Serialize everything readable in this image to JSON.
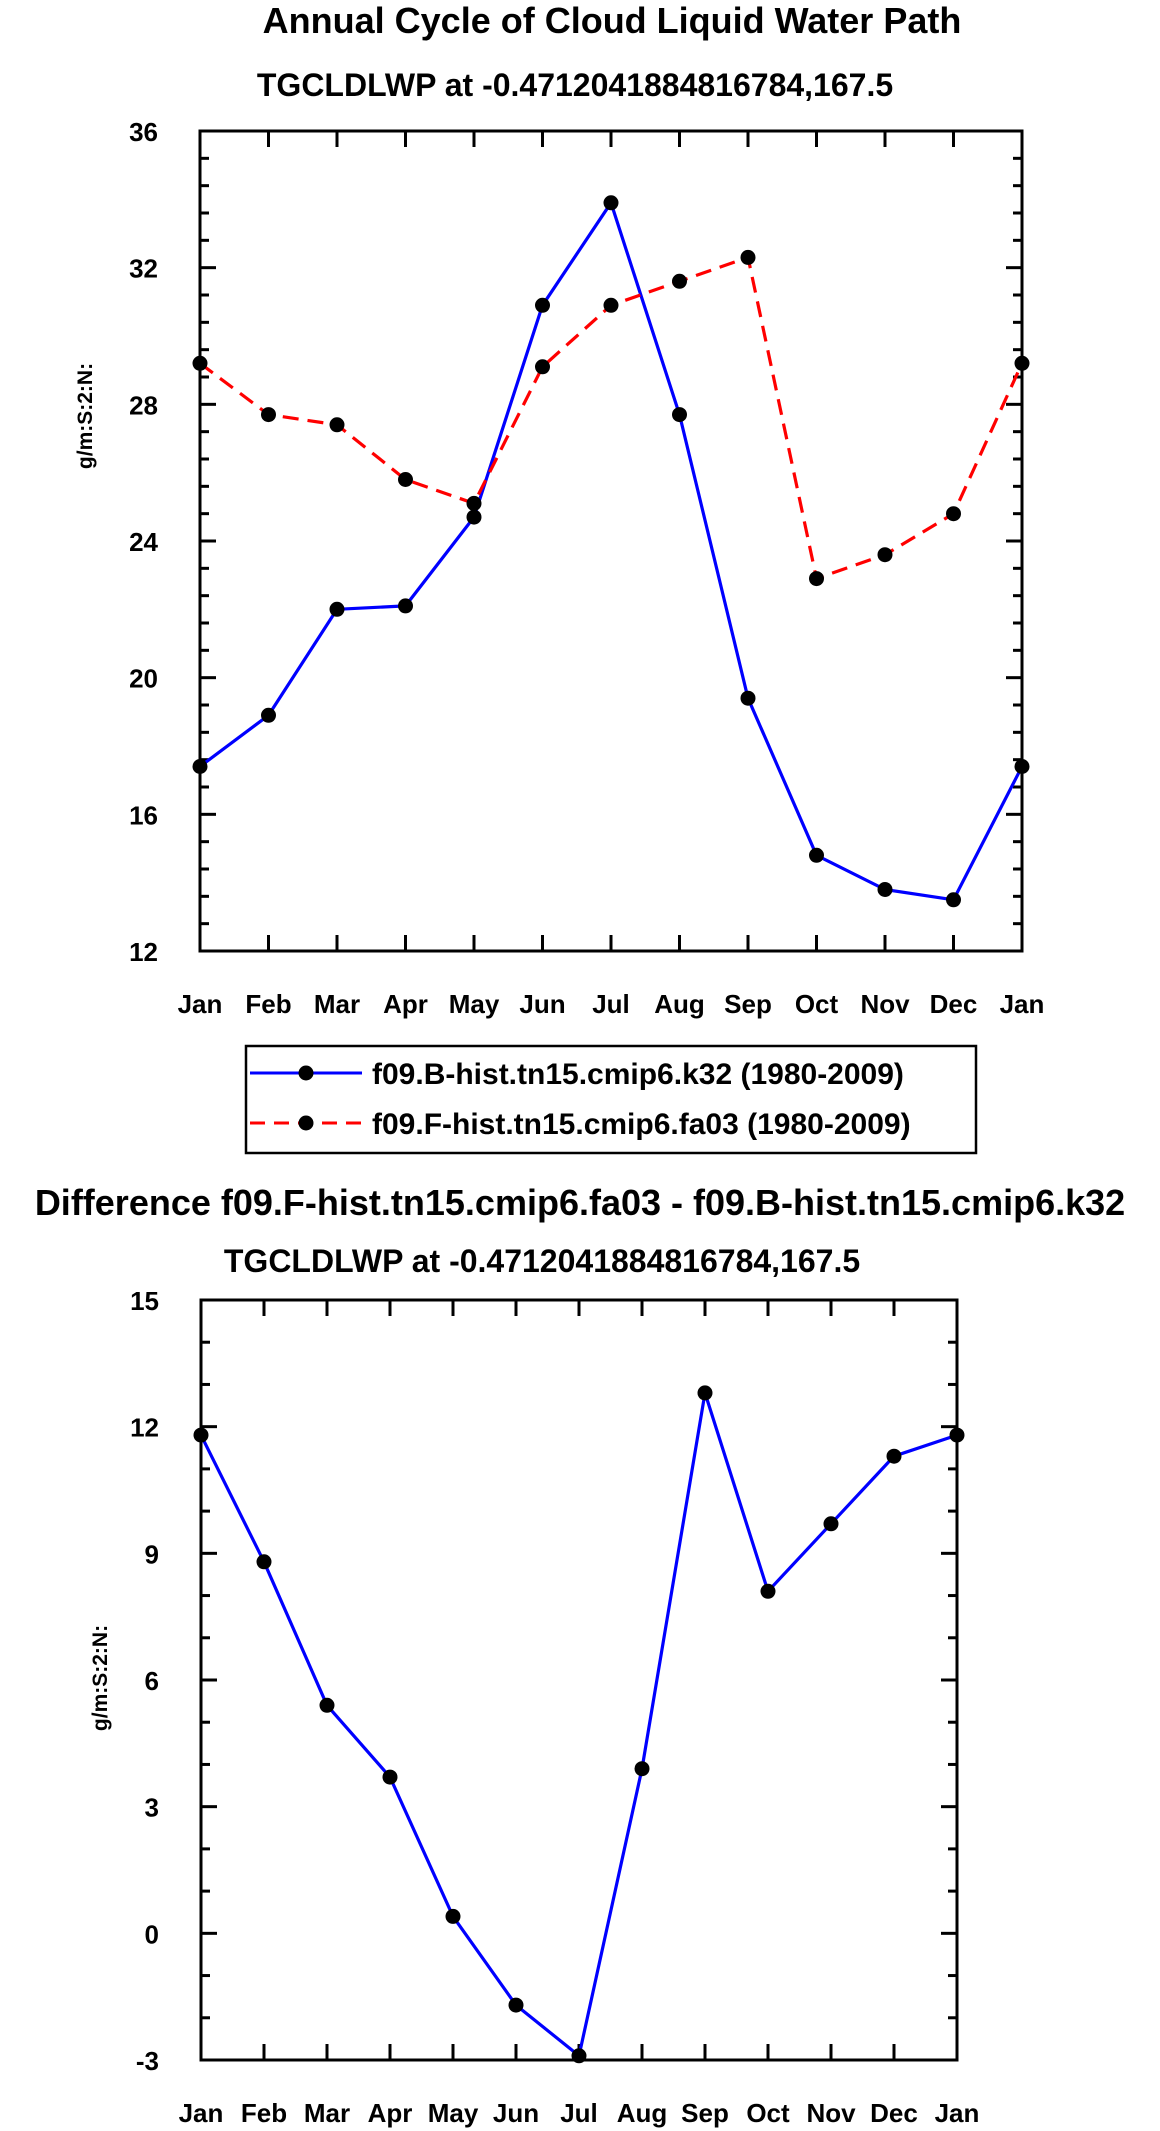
{
  "chart_data": [
    {
      "type": "line",
      "title": "Annual Cycle of Cloud Liquid Water Path",
      "subtitle": "TGCLDLWP at -0.4712041884816784,167.5",
      "xlabel": "",
      "ylabel": "g/m:S:2:N:",
      "categories": [
        "Jan",
        "Feb",
        "Mar",
        "Apr",
        "May",
        "Jun",
        "Jul",
        "Aug",
        "Sep",
        "Oct",
        "Nov",
        "Dec",
        "Jan"
      ],
      "ylim": [
        12,
        36
      ],
      "yticks": [
        "12",
        "16",
        "20",
        "24",
        "28",
        "32",
        "36"
      ],
      "grid": false,
      "legend": "below",
      "series": [
        {
          "name": "f09.B-hist.tn15.cmip6.k32 (1980-2009)",
          "color": "#0000ff",
          "dash": "solid",
          "values": [
            17.4,
            18.9,
            22.0,
            22.1,
            24.7,
            30.9,
            33.9,
            27.7,
            19.4,
            14.8,
            13.8,
            13.5,
            17.4
          ]
        },
        {
          "name": "f09.F-hist.tn15.cmip6.fa03 (1980-2009)",
          "color": "#ff0000",
          "dash": "dashed",
          "values": [
            29.2,
            27.7,
            27.4,
            25.8,
            25.1,
            29.1,
            30.9,
            31.6,
            32.3,
            22.9,
            23.6,
            24.8,
            29.2
          ]
        }
      ]
    },
    {
      "type": "line",
      "title": "Difference f09.F-hist.tn15.cmip6.fa03 - f09.B-hist.tn15.cmip6.k32",
      "subtitle": "TGCLDLWP at -0.4712041884816784,167.5",
      "xlabel": "",
      "ylabel": "g/m:S:2:N:",
      "categories": [
        "Jan",
        "Feb",
        "Mar",
        "Apr",
        "May",
        "Jun",
        "Jul",
        "Aug",
        "Sep",
        "Oct",
        "Nov",
        "Dec",
        "Jan"
      ],
      "ylim": [
        -3,
        15
      ],
      "yticks": [
        "-3",
        "0",
        "3",
        "6",
        "9",
        "12",
        "15"
      ],
      "grid": false,
      "series": [
        {
          "name": "Difference",
          "color": "#0000ff",
          "dash": "solid",
          "values": [
            11.8,
            8.8,
            5.4,
            3.7,
            0.4,
            -1.7,
            -2.9,
            3.9,
            12.8,
            8.1,
            9.7,
            11.3,
            11.8
          ]
        }
      ]
    }
  ]
}
